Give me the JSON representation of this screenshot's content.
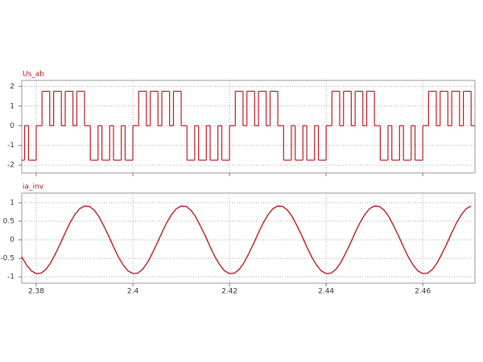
{
  "chart_data": [
    {
      "type": "step",
      "title": "Us_ab",
      "color": "#b81c22",
      "grid": true,
      "xlim": [
        2.377,
        2.4708
      ],
      "xticks": [
        2.38,
        2.4,
        2.42,
        2.44,
        2.46
      ],
      "ylim": [
        -2.4,
        2.3
      ],
      "yticks": [
        2,
        1,
        0,
        -1,
        -2
      ],
      "x": [
        2.377,
        2.3776,
        2.3784,
        2.38,
        2.3812,
        2.3828,
        2.3836,
        2.3852,
        2.386,
        2.3876,
        2.3884,
        2.39,
        2.3912,
        2.3928,
        2.3936,
        2.3952,
        2.396,
        2.3976,
        2.3984,
        2.4,
        2.4012,
        2.4028,
        2.4036,
        2.4052,
        2.406,
        2.4076,
        2.4084,
        2.41,
        2.4112,
        2.4128,
        2.4136,
        2.4152,
        2.416,
        2.4176,
        2.4184,
        2.42,
        2.4212,
        2.4228,
        2.4236,
        2.4252,
        2.426,
        2.4276,
        2.4284,
        2.43,
        2.4312,
        2.4328,
        2.4336,
        2.4352,
        2.436,
        2.4376,
        2.4384,
        2.44,
        2.4412,
        2.4428,
        2.4436,
        2.4452,
        2.446,
        2.4476,
        2.4484,
        2.45,
        2.4512,
        2.4528,
        2.4536,
        2.4552,
        2.456,
        2.4576,
        2.4584,
        2.46,
        2.4612,
        2.4628,
        2.4636,
        2.4652,
        2.466,
        2.4676,
        2.4684,
        2.47,
        2.4708
      ],
      "values": [
        -1.75,
        0,
        -1.75,
        0,
        1.75,
        0,
        1.75,
        0,
        1.75,
        0,
        1.75,
        0,
        -1.75,
        0,
        -1.75,
        0,
        -1.75,
        0,
        -1.75,
        0,
        1.75,
        0,
        1.75,
        0,
        1.75,
        0,
        1.75,
        0,
        -1.75,
        0,
        -1.75,
        0,
        -1.75,
        0,
        -1.75,
        0,
        1.75,
        0,
        1.75,
        0,
        1.75,
        0,
        1.75,
        0,
        -1.75,
        0,
        -1.75,
        0,
        -1.75,
        0,
        -1.75,
        0,
        1.75,
        0,
        1.75,
        0,
        1.75,
        0,
        1.75,
        0,
        -1.75,
        0,
        -1.75,
        0,
        -1.75,
        0,
        -1.75,
        0,
        1.75,
        0,
        1.75,
        0,
        1.75,
        0,
        1.75,
        0,
        0
      ]
    },
    {
      "type": "line",
      "title": "ia_inv",
      "color": "#b81c22",
      "grid": true,
      "xlim": [
        2.377,
        2.4708
      ],
      "xticks": [
        2.38,
        2.4,
        2.42,
        2.44,
        2.46
      ],
      "ylim": [
        -1.17,
        1.26
      ],
      "yticks": [
        1,
        0.5,
        0,
        -0.5,
        -1
      ],
      "x": [
        2.377,
        2.378,
        2.379,
        2.38,
        2.381,
        2.382,
        2.383,
        2.384,
        2.385,
        2.386,
        2.387,
        2.388,
        2.389,
        2.39,
        2.391,
        2.392,
        2.393,
        2.394,
        2.395,
        2.396,
        2.397,
        2.398,
        2.399,
        2.4,
        2.401,
        2.402,
        2.403,
        2.404,
        2.405,
        2.406,
        2.407,
        2.408,
        2.409,
        2.41,
        2.411,
        2.412,
        2.413,
        2.414,
        2.415,
        2.416,
        2.417,
        2.418,
        2.419,
        2.42,
        2.421,
        2.422,
        2.423,
        2.424,
        2.425,
        2.426,
        2.427,
        2.428,
        2.429,
        2.43,
        2.431,
        2.432,
        2.433,
        2.434,
        2.435,
        2.436,
        2.437,
        2.438,
        2.439,
        2.44,
        2.441,
        2.442,
        2.443,
        2.444,
        2.445,
        2.446,
        2.447,
        2.448,
        2.449,
        2.45,
        2.451,
        2.452,
        2.453,
        2.454,
        2.455,
        2.456,
        2.457,
        2.458,
        2.459,
        2.46,
        2.461,
        2.462,
        2.463,
        2.464,
        2.465,
        2.466,
        2.467,
        2.468,
        2.469,
        2.47
      ],
      "values": [
        -0.46,
        -0.68,
        -0.84,
        -0.91,
        -0.9,
        -0.8,
        -0.62,
        -0.37,
        -0.1,
        0.19,
        0.46,
        0.68,
        0.84,
        0.91,
        0.9,
        0.8,
        0.62,
        0.37,
        0.1,
        -0.19,
        -0.46,
        -0.68,
        -0.84,
        -0.91,
        -0.9,
        -0.8,
        -0.62,
        -0.37,
        -0.1,
        0.19,
        0.46,
        0.68,
        0.84,
        0.91,
        0.9,
        0.8,
        0.62,
        0.37,
        0.1,
        -0.19,
        -0.46,
        -0.68,
        -0.84,
        -0.91,
        -0.9,
        -0.8,
        -0.62,
        -0.37,
        -0.1,
        0.19,
        0.46,
        0.68,
        0.84,
        0.91,
        0.9,
        0.8,
        0.62,
        0.37,
        0.1,
        -0.19,
        -0.46,
        -0.68,
        -0.84,
        -0.91,
        -0.9,
        -0.8,
        -0.62,
        -0.37,
        -0.1,
        0.19,
        0.46,
        0.68,
        0.84,
        0.91,
        0.9,
        0.8,
        0.62,
        0.37,
        0.1,
        -0.19,
        -0.46,
        -0.68,
        -0.84,
        -0.91,
        -0.9,
        -0.8,
        -0.62,
        -0.37,
        -0.1,
        0.19,
        0.46,
        0.68,
        0.84,
        0.91
      ]
    }
  ]
}
